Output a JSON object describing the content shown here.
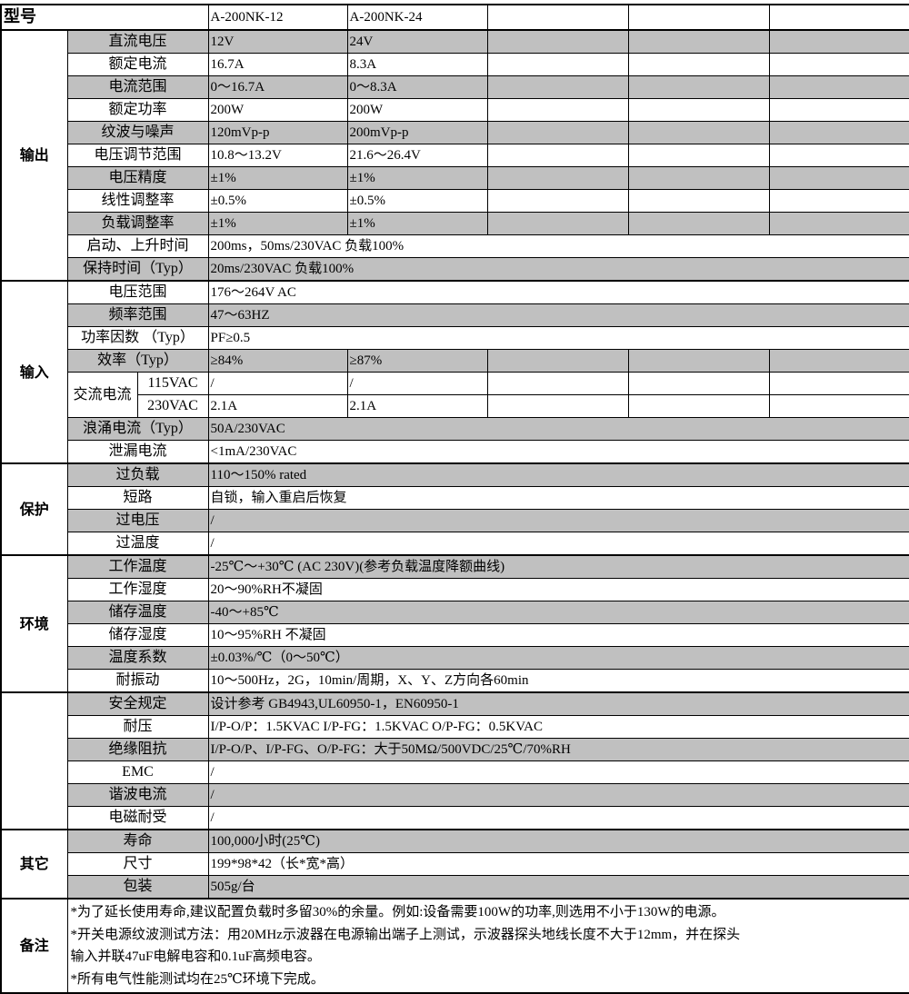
{
  "header": {
    "label": "型号",
    "models": [
      "A-200NK-12",
      "A-200NK-24",
      "",
      "",
      ""
    ]
  },
  "sections": [
    {
      "name": "输出",
      "rows": [
        {
          "label": "直流电压",
          "values": [
            "12V",
            "24V"
          ]
        },
        {
          "label": "额定电流",
          "values": [
            "16.7A",
            "8.3A"
          ]
        },
        {
          "label": "电流范围",
          "values": [
            "0～16.7A",
            "0～8.3A"
          ]
        },
        {
          "label": "额定功率",
          "values": [
            "200W",
            "200W"
          ]
        },
        {
          "label": "纹波与噪声",
          "values": [
            "120mVp-p",
            "200mVp-p"
          ]
        },
        {
          "label": "电压调节范围",
          "values": [
            "10.8～13.2V",
            "21.6～26.4V"
          ]
        },
        {
          "label": "电压精度",
          "values": [
            "±1%",
            "±1%"
          ]
        },
        {
          "label": "线性调整率",
          "values": [
            "±0.5%",
            "±0.5%"
          ]
        },
        {
          "label": "负载调整率",
          "values": [
            "±1%",
            "±1%"
          ]
        },
        {
          "label": "启动、上升时间",
          "value": "200ms，50ms/230VAC 负载100%"
        },
        {
          "label": "保持时间（Typ）",
          "value": "20ms/230VAC 负载100%"
        }
      ]
    },
    {
      "name": "输入",
      "rows": [
        {
          "label": "电压范围",
          "value": "176～264V AC"
        },
        {
          "label": "频率范围",
          "value": "47～63HZ"
        },
        {
          "label": "功率因数 （Typ）",
          "value": "PF≥0.5"
        },
        {
          "label": "效率（Typ）",
          "values": [
            "≥84%",
            "≥87%"
          ]
        },
        {
          "group": "交流电流",
          "label": "115VAC",
          "values": [
            "/",
            "/"
          ]
        },
        {
          "label": "230VAC",
          "values": [
            "2.1A",
            "2.1A"
          ]
        },
        {
          "label": "浪涌电流（Typ）",
          "value": "50A/230VAC"
        },
        {
          "label": "泄漏电流",
          "value": "<1mA/230VAC"
        }
      ]
    },
    {
      "name": "保护",
      "rows": [
        {
          "label": "过负载",
          "value": "110～150% rated"
        },
        {
          "label": "短路",
          "value": "自锁，输入重启后恢复"
        },
        {
          "label": "过电压",
          "value": "/"
        },
        {
          "label": "过温度",
          "value": "/"
        }
      ]
    },
    {
      "name": "环境",
      "rows": [
        {
          "label": "工作温度",
          "value": "-25℃～+30℃ (AC 230V)(参考负载温度降额曲线)"
        },
        {
          "label": "工作湿度",
          "value": "20～90%RH不凝固"
        },
        {
          "label": "储存温度",
          "value": "-40～+85℃"
        },
        {
          "label": "储存湿度",
          "value": "10～95%RH 不凝固"
        },
        {
          "label": "温度系数",
          "value": "±0.03%/℃（0～50℃）"
        },
        {
          "label": "耐振动",
          "value": "10～500Hz，2G，10min/周期，X、Y、Z方向各60min"
        }
      ]
    },
    {
      "name": "",
      "rows": [
        {
          "label": "安全规定",
          "value": "设计参考 GB4943,UL60950-1，EN60950-1"
        },
        {
          "label": "耐压",
          "value": "I/P-O/P：1.5KVAC I/P-FG：1.5KVAC    O/P-FG：0.5KVAC"
        },
        {
          "label": "绝缘阻抗",
          "value": "I/P-O/P、I/P-FG、O/P-FG：大于50MΩ/500VDC/25℃/70%RH"
        },
        {
          "label": "EMC",
          "value": "/"
        },
        {
          "label": "谐波电流",
          "value": "/"
        },
        {
          "label": "电磁耐受",
          "value": "/"
        }
      ]
    },
    {
      "name": "其它",
      "rows": [
        {
          "label": "寿命",
          "value": "100,000小时(25℃)"
        },
        {
          "label": "尺寸",
          "value": "199*98*42（长*宽*高）"
        },
        {
          "label": "包装",
          "value": "505g/台"
        }
      ]
    }
  ],
  "notes": {
    "label": "备注",
    "lines": [
      "*为了延长使用寿命,建议配置负载时多留30%的余量。例如:设备需要100W的功率,则选用不小于130W的电源。",
      "*开关电源纹波测试方法：用20MHz示波器在电源输出端子上测试，示波器探头地线长度不大于12mm，并在探头",
      "输入并联47uF电解电容和0.1uF高频电容。",
      "*所有电气性能测试均在25℃环境下完成。"
    ]
  }
}
